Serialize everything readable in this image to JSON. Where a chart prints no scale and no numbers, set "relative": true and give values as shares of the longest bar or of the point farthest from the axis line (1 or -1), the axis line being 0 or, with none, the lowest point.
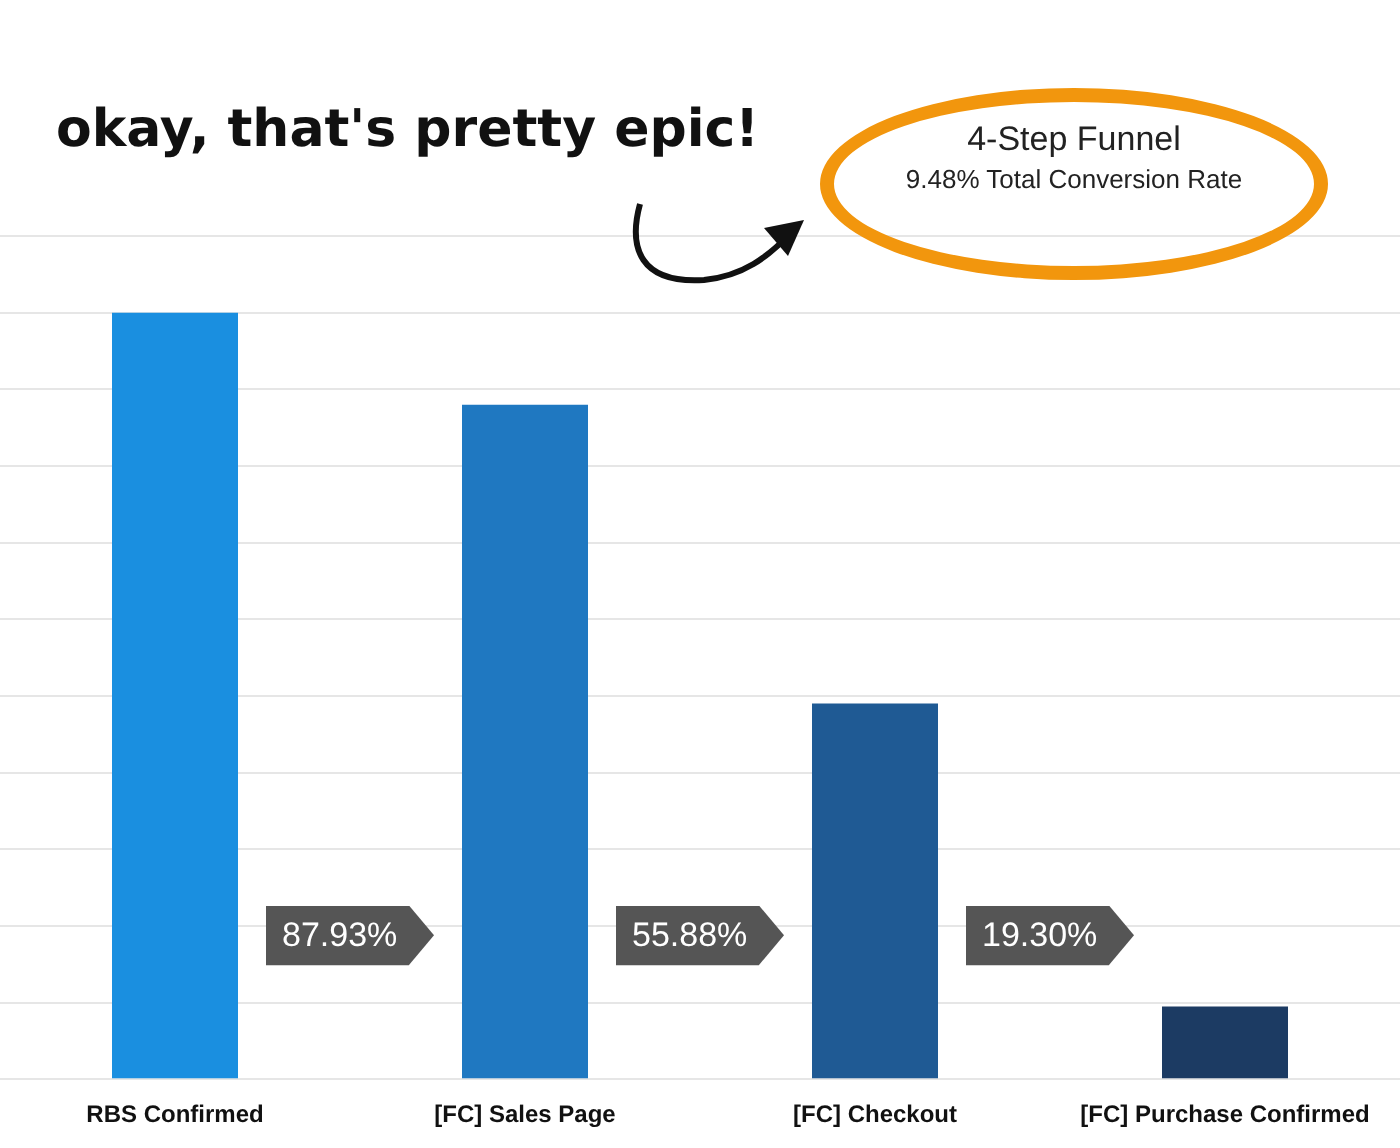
{
  "chart_data": {
    "type": "bar",
    "relative": true,
    "title": "4-Step Funnel",
    "subtitle": "9.48% Total Conversion Rate",
    "categories": [
      "RBS Confirmed",
      "[FC] Sales Page",
      "[FC] Checkout",
      "[FC] Purchase Confirmed"
    ],
    "values": [
      1,
      0.88,
      0.49,
      0.095
    ],
    "colors": [
      "#1a8fe0",
      "#1f78c1",
      "#1f5a94",
      "#1c3b63"
    ],
    "grid": "y",
    "annotations": [
      "okay, that's pretty epic!",
      "87.93%",
      "55.88%",
      "19.30%"
    ]
  }
}
